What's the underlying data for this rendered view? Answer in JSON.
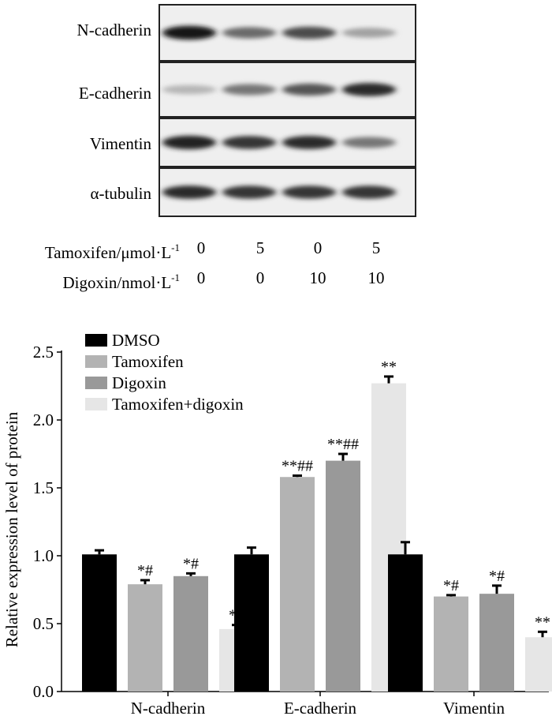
{
  "blot": {
    "bands": [
      "N-cadherin",
      "E-cadherin",
      "Vimentin",
      "α-tubulin"
    ],
    "lane_intensity": [
      [
        0.95,
        0.55,
        0.7,
        0.3
      ],
      [
        0.2,
        0.5,
        0.65,
        0.85
      ],
      [
        0.9,
        0.8,
        0.85,
        0.5
      ],
      [
        0.85,
        0.8,
        0.8,
        0.8
      ]
    ],
    "treatments": [
      {
        "label": "Tamoxifen/μmol·L",
        "sup": "-1",
        "values": [
          "0",
          "5",
          "0",
          "5"
        ]
      },
      {
        "label": "Digoxin/nmol·L",
        "sup": "-1",
        "values": [
          "0",
          "0",
          "10",
          "10"
        ]
      }
    ]
  },
  "chart_data": {
    "type": "bar",
    "categories": [
      "N-cadherin",
      "E-cadherin",
      "Vimentin"
    ],
    "series": [
      {
        "name": "DMSO",
        "values": [
          1.01,
          1.01,
          1.01
        ],
        "errors": [
          0.03,
          0.05,
          0.09
        ],
        "annotations": [
          "",
          "",
          ""
        ],
        "color": "#000000"
      },
      {
        "name": "Tamoxifen",
        "values": [
          0.79,
          1.58,
          0.7
        ],
        "errors": [
          0.03,
          0.01,
          0.01
        ],
        "annotations": [
          "*#",
          "**##",
          "*#"
        ],
        "color": "#b3b3b3"
      },
      {
        "name": "Digoxin",
        "values": [
          0.85,
          1.7,
          0.72
        ],
        "errors": [
          0.02,
          0.05,
          0.06
        ],
        "annotations": [
          "*#",
          "**##",
          "*#"
        ],
        "color": "#999999"
      },
      {
        "name": "Tamoxifen+digoxin",
        "values": [
          0.46,
          2.27,
          0.4
        ],
        "errors": [
          0.03,
          0.05,
          0.04
        ],
        "annotations": [
          "**",
          "**",
          "**"
        ],
        "color": "#e6e6e6"
      }
    ],
    "ylabel": "Relative expression level of protein",
    "xlabel": "",
    "ylim": [
      0,
      2.5
    ],
    "yticks": [
      "0.0",
      "0.5",
      "1.0",
      "1.5",
      "2.0",
      "2.5"
    ],
    "legend_position": "top-left",
    "grid": false
  }
}
